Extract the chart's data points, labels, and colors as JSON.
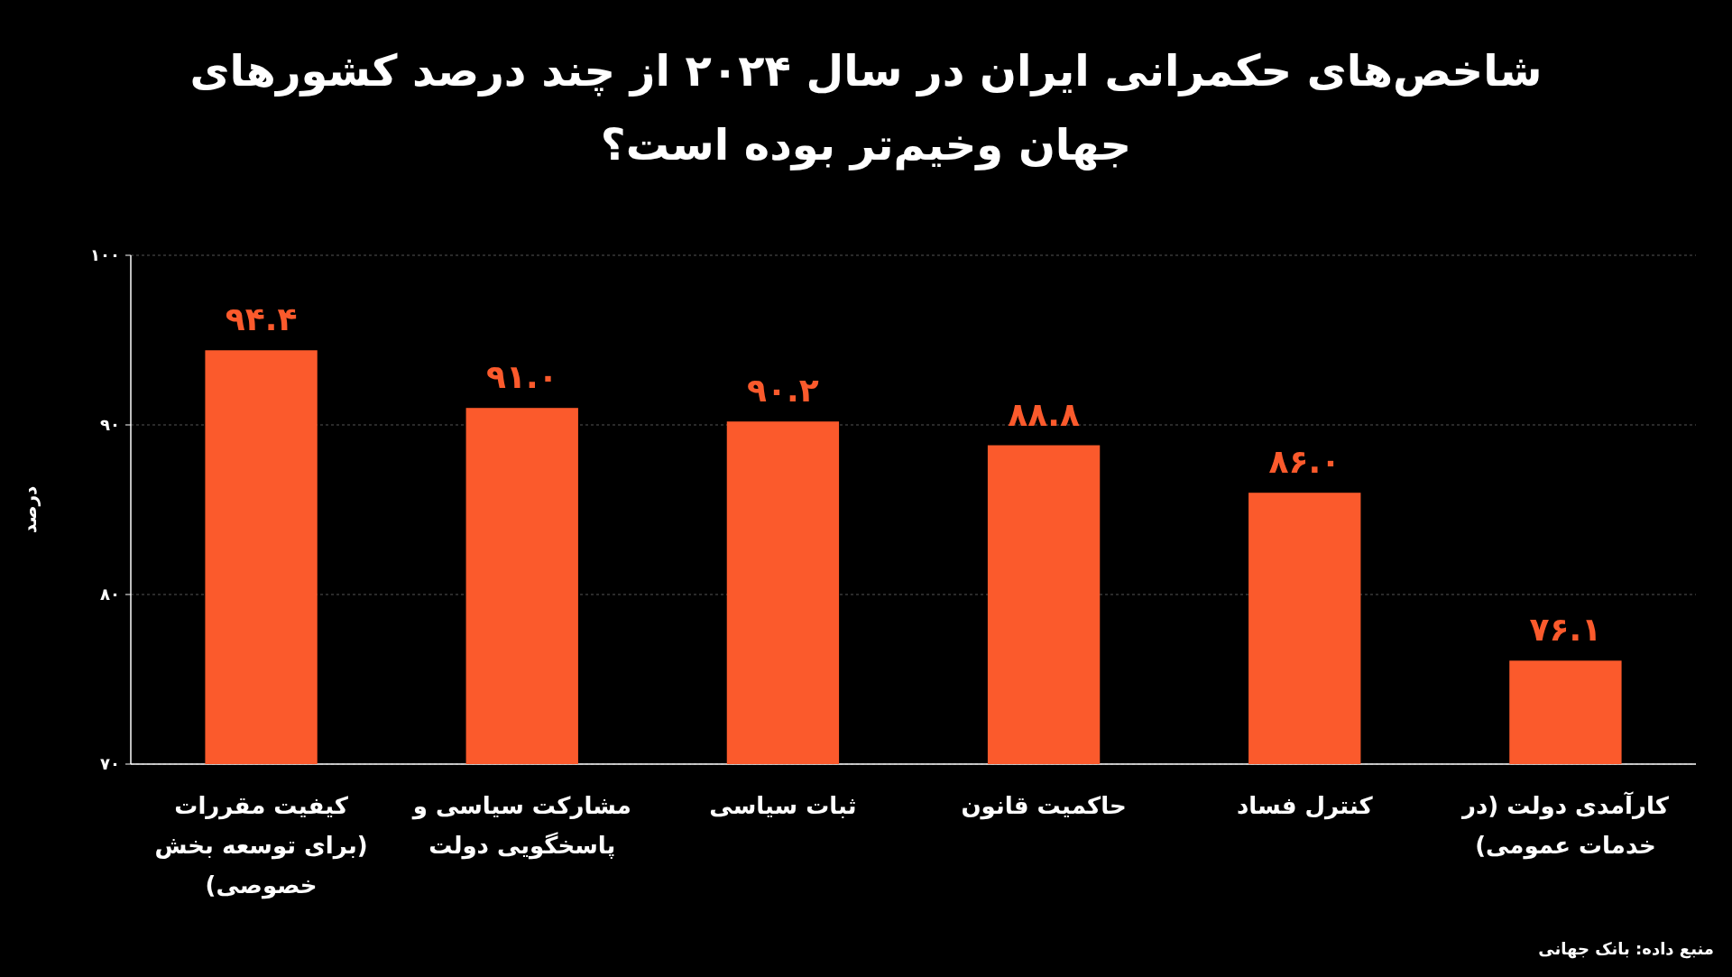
{
  "chart_data": {
    "type": "bar",
    "title": "شاخص‌های حکمرانی ایران در سال ۲۰۲۴ از چند درصد کشورهای جهان وخیم‌تر بوده است؟",
    "ylabel": "درصد",
    "categories": [
      "کیفیت مقررات (برای توسعه بخش خصوصی)",
      "مشارکت سیاسی و پاسخگویی دولت",
      "ثبات سیاسی",
      "حاکمیت قانون",
      "کنترل فساد",
      "کارآمدی دولت (در خدمات عمومی)"
    ],
    "values": [
      94.4,
      91.0,
      90.2,
      88.8,
      86.0,
      76.1
    ],
    "value_labels": [
      "۹۴.۴",
      "۹۱.۰",
      "۹۰.۲",
      "۸۸.۸",
      "۸۶.۰",
      "۷۶.۱"
    ],
    "color": "#fb5a2c",
    "ylim": [
      70,
      100
    ],
    "yticks": [
      {
        "value": 70,
        "label": "۷۰"
      },
      {
        "value": 80,
        "label": "۸۰"
      },
      {
        "value": 90,
        "label": "۹۰"
      },
      {
        "value": 100,
        "label": "۱۰۰"
      }
    ],
    "grid": "y",
    "annotations": [
      "منبع داده: بانک جهانی"
    ]
  }
}
